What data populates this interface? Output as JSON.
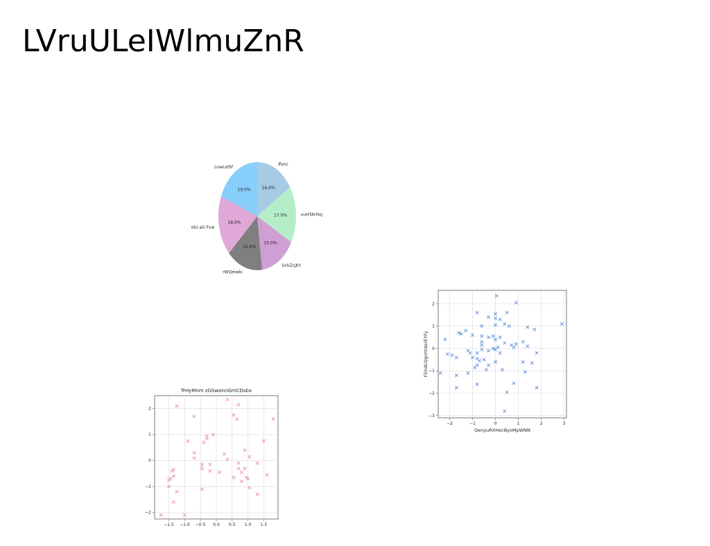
{
  "page": {
    "title": "LVruULeIWlmuZnR"
  },
  "chart_data": [
    {
      "type": "pie",
      "title": "",
      "labels": [
        "lfonc",
        "xuHTArHxj",
        "UckZcjKY",
        "rWQeiwki",
        "olU aG Fvw",
        "LnwLstSf"
      ],
      "values": [
        16.0,
        17.0,
        15.0,
        15.0,
        18.0,
        19.0
      ],
      "value_labels": [
        "16.0%",
        "17.0%",
        "15.0%",
        "15.0%",
        "18.0%",
        "19.0%"
      ],
      "colors": [
        "#a6cbe3",
        "#b4eec9",
        "#cf9fd4",
        "#7f7f7f",
        "#e0a8d6",
        "#87cefa"
      ],
      "start_angle_deg": 90,
      "direction": "clockwise"
    },
    {
      "type": "scatter",
      "title": "",
      "xlabel": "QenyuRXHecByoMpWNN",
      "ylabel": "FDndLQgimtdorEYFy",
      "xlim": [
        -2.5,
        3.1
      ],
      "ylim": [
        -3.1,
        2.6
      ],
      "xticks": [
        "−2",
        "−1",
        "0",
        "1",
        "2",
        "3"
      ],
      "xtick_values": [
        -2,
        -1,
        0,
        1,
        2,
        3
      ],
      "yticks": [
        "−3",
        "−2",
        "−1",
        "0",
        "1",
        "2"
      ],
      "ytick_values": [
        -3,
        -2,
        -1,
        0,
        1,
        2
      ],
      "grid": true,
      "marker": "x",
      "color": "#5b8fd8",
      "x": [
        0.05,
        0.9,
        -0.8,
        0.0,
        0.5,
        -0.3,
        0.2,
        0.0,
        0.4,
        2.9,
        -0.6,
        0.0,
        0.6,
        1.7,
        1.4,
        -1.3,
        -1.5,
        -0.6,
        -0.3,
        -0.1,
        0.2,
        0.9,
        1.2,
        -0.6,
        0.4,
        -1.0,
        0.0,
        -0.6,
        -1.6,
        0.7,
        0.8,
        -0.1,
        0.1,
        1.4,
        -2.1,
        -0.6,
        -1.2,
        -1.9,
        -1.1,
        -0.8,
        -0.3,
        0.0,
        0.2,
        1.8,
        -2.2,
        -1.0,
        -0.8,
        -0.5,
        -0.7,
        0.0,
        -0.3,
        0.3,
        -0.9,
        1.2,
        1.6,
        -1.7,
        -1.7,
        -0.8,
        1.3,
        0.8,
        -2.4,
        -1.2,
        -0.4,
        0.5,
        1.8,
        -1.7,
        -0.8,
        0.4
      ],
      "y": [
        2.35,
        2.05,
        1.6,
        1.55,
        1.6,
        1.4,
        1.3,
        1.35,
        1.1,
        1.1,
        1.0,
        1.05,
        1.0,
        0.85,
        0.95,
        0.8,
        0.65,
        0.55,
        0.5,
        0.55,
        0.5,
        0.2,
        0.3,
        0.3,
        0.25,
        0.6,
        0.4,
        0.15,
        0.7,
        0.15,
        0.05,
        0.0,
        0.05,
        0.1,
        -0.25,
        -0.05,
        -0.1,
        -0.3,
        -0.2,
        -0.2,
        -0.1,
        -0.05,
        -0.2,
        -0.2,
        0.4,
        -0.4,
        -0.45,
        -0.5,
        -0.55,
        -0.6,
        -0.75,
        -0.95,
        -0.85,
        -0.6,
        -0.65,
        -0.4,
        -1.2,
        -0.75,
        -1.05,
        -1.55,
        -1.1,
        -1.1,
        -0.95,
        -1.95,
        -1.75,
        -1.75,
        -1.6,
        -2.8
      ]
    },
    {
      "type": "scatter",
      "title": "TrHyMnm zGSwonnGmCDsbx",
      "xlabel": "",
      "ylabel": "",
      "xlim": [
        -1.95,
        1.95
      ],
      "ylim": [
        -2.25,
        2.5
      ],
      "xticks": [
        "−1.5",
        "−1.0",
        "−0.5",
        "0.0",
        "0.5",
        "1.0",
        "1.5"
      ],
      "xtick_values": [
        -1.5,
        -1.0,
        -0.5,
        0.0,
        0.5,
        1.0,
        1.5
      ],
      "yticks": [
        "−2",
        "−1",
        "0",
        "1",
        "2"
      ],
      "ytick_values": [
        -2,
        -1,
        0,
        1,
        2
      ],
      "grid": true,
      "marker": "x",
      "color": "#e48fb0",
      "x": [
        0.35,
        0.7,
        -1.25,
        0.55,
        -0.7,
        0.65,
        1.8,
        -0.1,
        -0.3,
        -0.3,
        -0.9,
        -0.4,
        1.5,
        -0.7,
        0.9,
        0.25,
        -0.7,
        0.35,
        1.05,
        0.7,
        1.3,
        0.9,
        -0.2,
        -0.45,
        -0.45,
        0.7,
        -0.2,
        0.1,
        -1.35,
        -1.4,
        0.8,
        0.55,
        1.6,
        -1.35,
        1.0,
        0.95,
        -1.45,
        -1.5,
        -0.45,
        1.05,
        -1.25,
        0.8,
        1.3,
        -1.5,
        -1.35,
        -1.75,
        -1.0
      ],
      "y": [
        2.35,
        2.15,
        2.1,
        1.75,
        1.7,
        1.6,
        1.6,
        1.0,
        0.95,
        0.85,
        0.75,
        0.7,
        0.75,
        0.3,
        0.4,
        0.25,
        0.1,
        0.05,
        0.15,
        -0.1,
        -0.1,
        -0.3,
        -0.15,
        -0.15,
        -0.3,
        -0.3,
        -0.4,
        -0.45,
        -0.35,
        -0.4,
        -0.45,
        -0.65,
        -0.55,
        -0.6,
        -0.7,
        -0.65,
        -0.7,
        -0.75,
        -1.1,
        -1.05,
        -1.2,
        -0.8,
        -1.3,
        -1.0,
        -1.6,
        -2.1,
        -2.1
      ]
    }
  ]
}
